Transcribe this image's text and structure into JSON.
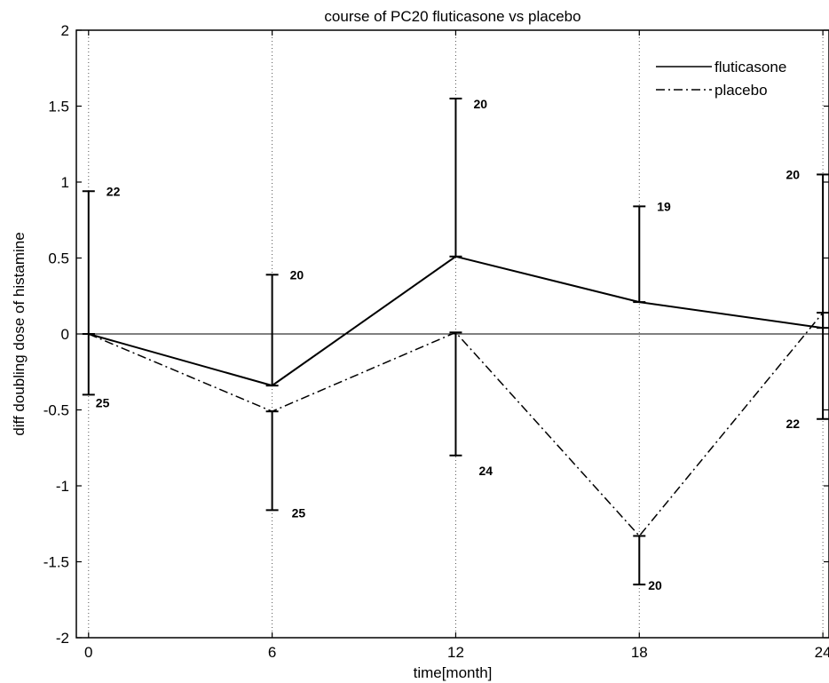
{
  "chart_data": {
    "type": "line",
    "title": "course of PC20 fluticasone vs placebo",
    "xlabel": "time[month]",
    "ylabel": "diff doubling dose of histamine",
    "x": [
      0,
      6,
      12,
      18,
      24
    ],
    "xticks": [
      "0",
      "6",
      "12",
      "18",
      "24"
    ],
    "yticks": [
      "2",
      "1.5",
      "1",
      "0.5",
      "0",
      "-0.5",
      "-1",
      "-1.5",
      "-2"
    ],
    "xlim": [
      -0.4,
      24.2
    ],
    "ylim": [
      -2,
      2
    ],
    "grid": "vertical dotted at x ticks",
    "reference_line_y": 0,
    "legend_position": "top-right",
    "series": [
      {
        "name": "fluticasone",
        "style": "solid",
        "values": [
          0,
          -0.34,
          0.51,
          0.21,
          0.04
        ],
        "error_upper": [
          0.94,
          0.39,
          1.55,
          0.84,
          1.05
        ],
        "error_lower": [
          null,
          null,
          null,
          null,
          null
        ],
        "n_labels": [
          "22",
          "20",
          "20",
          "19",
          "20"
        ]
      },
      {
        "name": "placebo",
        "style": "dashdot",
        "values": [
          0,
          -0.51,
          0.01,
          -1.33,
          0.14
        ],
        "error_upper": [
          null,
          null,
          null,
          null,
          null
        ],
        "error_lower": [
          -0.4,
          -1.16,
          -0.8,
          -1.65,
          -0.56
        ],
        "n_labels": [
          "25",
          "25",
          "24",
          "20",
          "22"
        ]
      }
    ]
  }
}
